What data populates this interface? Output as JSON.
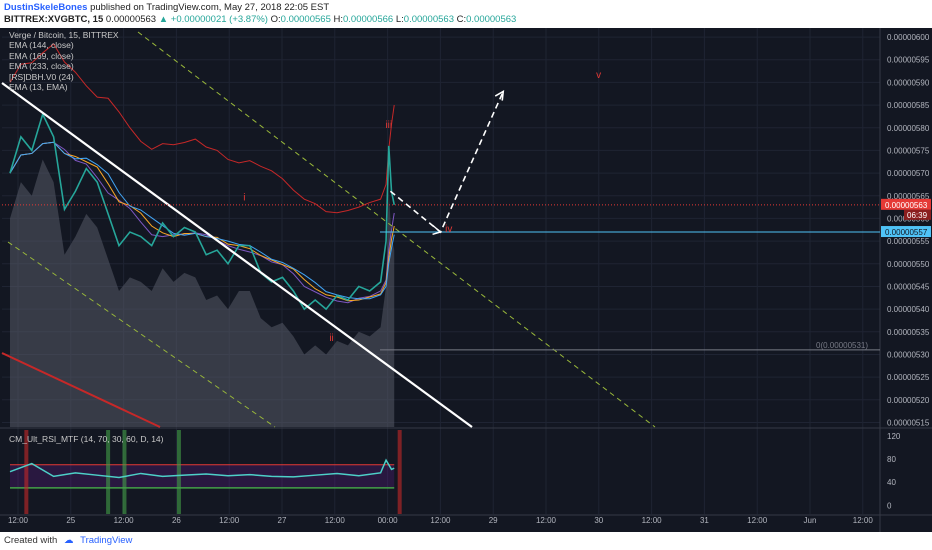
{
  "header": {
    "author": "DustinSkeleBones",
    "published": "published on TradingView.com, May 27, 2018 22:05 EST",
    "symbol": "BITTREX:XVGBTC, 15",
    "price": "0.00000563",
    "change": "+0.00000021 (+3.87%)",
    "o_label": "O:",
    "o_val": "0.00000565",
    "h_label": "H:",
    "h_val": "0.00000566",
    "l_label": "L:",
    "l_val": "0.00000563",
    "c_label": "C:",
    "c_val": "0.00000563"
  },
  "legend": {
    "title": "Verge / Bitcoin, 15, BITTREX",
    "items": [
      "EMA (144, close)",
      "EMA (169, close)",
      "EMA (233, close)",
      "[RS]DBH.V0 (24)",
      "EMA (13, EMA)"
    ]
  },
  "rsi_legend": "CM_Ult_RSI_MTF (14, 70, 30, 60, D, 14)",
  "footer": {
    "created": "Created with",
    "brand": "TradingView"
  },
  "colors": {
    "background": "#131722",
    "axis_text": "#b2b5be",
    "wave_label": "#e53935",
    "price_tag": "#e53935",
    "level_tag": "#4fc3f7"
  },
  "chart_data": [
    {
      "type": "line",
      "title": "Verge / Bitcoin, 15, BITTREX",
      "y_ticks": [
        "0.00000600",
        "0.00000595",
        "0.00000590",
        "0.00000585",
        "0.00000580",
        "0.00000575",
        "0.00000570",
        "0.00000565",
        "0.00000560",
        "0.00000555",
        "0.00000550",
        "0.00000545",
        "0.00000540",
        "0.00000535",
        "0.00000530",
        "0.00000525",
        "0.00000520",
        "0.00000515"
      ],
      "x_ticks": [
        "12:00",
        "25",
        "12:00",
        "26",
        "12:00",
        "27",
        "12:00",
        "00:00",
        "12:00",
        "29",
        "12:00",
        "30",
        "12:00",
        "31",
        "12:00",
        "Jun",
        "12:00"
      ],
      "ylim": [
        5.14e-06,
        6.02e-06
      ],
      "current_price_tag": "0.00000563",
      "countdown_tag": "06:39",
      "level_tag": "0.00000557",
      "fib_label": "0(0.00000531)",
      "wave_labels": [
        {
          "label": "i",
          "x_hours": 43,
          "y": 5.64e-06
        },
        {
          "label": "ii",
          "x_hours": 59,
          "y": 5.33e-06
        },
        {
          "label": "iii",
          "x_hours": 69.5,
          "y": 5.8e-06
        },
        {
          "label": "iv",
          "x_hours": 80.5,
          "y": 5.57e-06
        },
        {
          "label": "v",
          "x_hours": 108,
          "y": 5.91e-06
        }
      ],
      "series": [
        {
          "name": "XVGBTC",
          "x_hours": [
            0,
            2,
            4,
            6,
            8,
            10,
            12,
            14,
            16,
            18,
            20,
            22,
            24,
            26,
            28,
            30,
            32,
            34,
            36,
            38,
            40,
            42,
            44,
            46,
            48,
            50,
            52,
            54,
            56,
            58,
            60,
            62,
            64,
            66,
            68,
            69,
            69.5,
            70,
            70.5
          ],
          "values": [
            5.7e-06,
            5.78e-06,
            5.75e-06,
            5.83e-06,
            5.78e-06,
            5.62e-06,
            5.66e-06,
            5.71e-06,
            5.68e-06,
            5.61e-06,
            5.54e-06,
            5.57e-06,
            5.56e-06,
            5.54e-06,
            5.59e-06,
            5.56e-06,
            5.58e-06,
            5.57e-06,
            5.52e-06,
            5.53e-06,
            5.5e-06,
            5.54e-06,
            5.54e-06,
            5.48e-06,
            5.46e-06,
            5.47e-06,
            5.44e-06,
            5.4e-06,
            5.42e-06,
            5.4e-06,
            5.43e-06,
            5.42e-06,
            5.45e-06,
            5.44e-06,
            5.46e-06,
            5.55e-06,
            5.76e-06,
            5.66e-06,
            5.63e-06
          ]
        }
      ]
    },
    {
      "type": "line",
      "title": "CM_Ult_RSI_MTF (14, 70, 30, 60, D, 14)",
      "y_ticks": [
        "120",
        "80",
        "40",
        "0"
      ],
      "ylim": [
        -15,
        130
      ],
      "levels": [
        70,
        30
      ],
      "series": [
        {
          "name": "RSI",
          "x_hours": [
            0,
            4,
            8,
            12,
            16,
            20,
            24,
            28,
            32,
            36,
            40,
            44,
            48,
            52,
            56,
            60,
            64,
            68,
            69,
            70,
            70.5
          ],
          "values": [
            58,
            72,
            50,
            56,
            52,
            48,
            55,
            50,
            52,
            54,
            51,
            53,
            50,
            49,
            52,
            55,
            51,
            56,
            78,
            62,
            64
          ]
        }
      ]
    }
  ]
}
